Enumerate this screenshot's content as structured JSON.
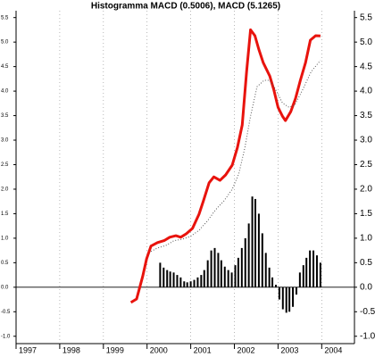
{
  "chart_data": {
    "type": "line",
    "title": "Histogramma MACD (0.5006), MACD (5.1265)",
    "series": [
      {
        "type": "line",
        "color": "#e8130d",
        "style": "solid",
        "x": [
          1999.63,
          1999.76,
          1999.9,
          1999.99,
          2000.09,
          2000.24,
          2000.39,
          2000.52,
          2000.66,
          2000.77,
          2000.9,
          2001.04,
          2001.19,
          2001.29,
          2001.42,
          2001.53,
          2001.67,
          2001.8,
          2001.95,
          2002.07,
          2002.18,
          2002.28,
          2002.37,
          2002.47,
          2002.56,
          2002.66,
          2002.81,
          2002.9,
          2003.0,
          2003.1,
          2003.17,
          2003.29,
          2003.4,
          2003.51,
          2003.63,
          2003.74,
          2003.86,
          2003.97
        ],
        "values": [
          -0.31,
          -0.24,
          0.22,
          0.58,
          0.84,
          0.91,
          0.95,
          1.02,
          1.05,
          1.02,
          1.09,
          1.2,
          1.49,
          1.76,
          2.13,
          2.25,
          2.18,
          2.29,
          2.49,
          2.85,
          3.31,
          4.4,
          5.25,
          5.13,
          4.85,
          4.58,
          4.31,
          4.04,
          3.67,
          3.49,
          3.4,
          3.58,
          3.85,
          4.22,
          4.58,
          5.04,
          5.13,
          5.1265
        ]
      },
      {
        "type": "line",
        "color": "#555555",
        "style": "dotted",
        "x": [
          2000.09,
          2000.24,
          2000.43,
          2000.62,
          2000.81,
          2001.0,
          2001.19,
          2001.38,
          2001.57,
          2001.76,
          2001.95,
          2002.1,
          2002.24,
          2002.37,
          2002.52,
          2002.68,
          2002.81,
          2002.94,
          2003.1,
          2003.25,
          2003.38,
          2003.57,
          2003.76,
          2003.97
        ],
        "values": [
          0.73,
          0.8,
          0.85,
          0.95,
          0.98,
          1.04,
          1.16,
          1.35,
          1.58,
          1.76,
          2.0,
          2.31,
          2.85,
          3.49,
          4.09,
          4.22,
          4.22,
          4.04,
          3.76,
          3.67,
          3.71,
          4.04,
          4.4,
          4.626
        ]
      },
      {
        "type": "bar",
        "color": "#000000",
        "x": [
          2000.3,
          2000.38,
          2000.46,
          2000.53,
          2000.61,
          2000.69,
          2000.77,
          2000.85,
          2000.92,
          2001.0,
          2001.08,
          2001.16,
          2001.24,
          2001.31,
          2001.39,
          2001.47,
          2001.55,
          2001.63,
          2001.7,
          2001.78,
          2001.86,
          2001.94,
          2002.02,
          2002.09,
          2002.17,
          2002.25,
          2002.33,
          2002.41,
          2002.48,
          2002.56,
          2002.64,
          2002.72,
          2002.8,
          2002.87,
          2002.95,
          2003.03,
          2003.11,
          2003.19,
          2003.26,
          2003.34,
          2003.42,
          2003.5,
          2003.58,
          2003.65,
          2003.73,
          2003.81,
          2003.89,
          2003.97
        ],
        "values": [
          0.5,
          0.4,
          0.35,
          0.32,
          0.3,
          0.25,
          0.2,
          0.12,
          0.1,
          0.12,
          0.15,
          0.2,
          0.25,
          0.35,
          0.55,
          0.75,
          0.8,
          0.7,
          0.55,
          0.42,
          0.35,
          0.3,
          0.45,
          0.6,
          0.8,
          1.0,
          1.3,
          1.85,
          1.8,
          1.5,
          1.1,
          0.7,
          0.4,
          0.2,
          0.05,
          -0.25,
          -0.45,
          -0.52,
          -0.5,
          -0.4,
          -0.15,
          0.3,
          0.45,
          0.6,
          0.75,
          0.75,
          0.65,
          0.5006
        ]
      }
    ],
    "xlim": [
      1997,
      2004.75
    ],
    "xticks": [
      1997,
      1998,
      1999,
      2000,
      2001,
      2002,
      2003,
      2004
    ],
    "ylim": [
      -1.15,
      5.64
    ],
    "yticks": [
      {
        "value": -1,
        "label": "-1.0"
      },
      {
        "value": -0.5,
        "label": "-0.5"
      },
      {
        "value": 0,
        "label": "0.0"
      },
      {
        "value": 0.5,
        "label": "0.5"
      },
      {
        "value": 1,
        "label": "1.0"
      },
      {
        "value": 1.5,
        "label": "1.5"
      },
      {
        "value": 2,
        "label": "2.0"
      },
      {
        "value": 2.5,
        "label": "2.5"
      },
      {
        "value": 3,
        "label": "3.0"
      },
      {
        "value": 3.5,
        "label": "3.5"
      },
      {
        "value": 4,
        "label": "4.0"
      },
      {
        "value": 4.5,
        "label": "4.5"
      },
      {
        "value": 5,
        "label": "5.0"
      },
      {
        "value": 5.5,
        "label": "5.5"
      }
    ],
    "grid": "x"
  }
}
